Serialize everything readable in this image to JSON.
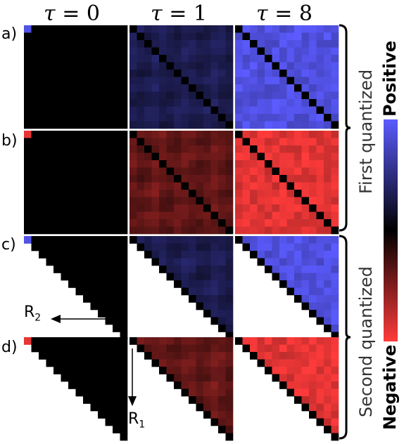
{
  "column_titles": [
    {
      "symbol": "τ",
      "eq": " = 0"
    },
    {
      "symbol": "τ",
      "eq": " = 1"
    },
    {
      "symbol": "τ",
      "eq": " = 8"
    }
  ],
  "row_labels": [
    "a)",
    "b)",
    "c)",
    "d)"
  ],
  "group_labels": {
    "top": "First quantized",
    "bottom": "Second quantized"
  },
  "colorbar": {
    "positive_label": "Positive",
    "negative_label": "Negative",
    "positive_color": "#5b5bff",
    "negative_color": "#ff3b3b",
    "zero_color": "#000000"
  },
  "axes": {
    "r2_label": "R",
    "r2_sub": "2",
    "r1_label": "R",
    "r1_sub": "1"
  },
  "panels": [
    {
      "row": 0,
      "col": 0,
      "sign": "positive",
      "shape": "full",
      "level": 0.0
    },
    {
      "row": 0,
      "col": 1,
      "sign": "positive",
      "shape": "full",
      "level": 0.45
    },
    {
      "row": 0,
      "col": 2,
      "sign": "positive",
      "shape": "full",
      "level": 0.9
    },
    {
      "row": 1,
      "col": 0,
      "sign": "negative",
      "shape": "full",
      "level": 0.0
    },
    {
      "row": 1,
      "col": 1,
      "sign": "negative",
      "shape": "full",
      "level": 0.55
    },
    {
      "row": 1,
      "col": 2,
      "sign": "negative",
      "shape": "full",
      "level": 0.95
    },
    {
      "row": 2,
      "col": 0,
      "sign": "positive",
      "shape": "triangle",
      "level": 0.0
    },
    {
      "row": 2,
      "col": 1,
      "sign": "positive",
      "shape": "triangle",
      "level": 0.45
    },
    {
      "row": 2,
      "col": 2,
      "sign": "positive",
      "shape": "triangle",
      "level": 0.9
    },
    {
      "row": 3,
      "col": 0,
      "sign": "negative",
      "shape": "triangle",
      "level": 0.0
    },
    {
      "row": 3,
      "col": 1,
      "sign": "negative",
      "shape": "triangle",
      "level": 0.55
    },
    {
      "row": 3,
      "col": 2,
      "sign": "negative",
      "shape": "triangle",
      "level": 0.95
    }
  ]
}
